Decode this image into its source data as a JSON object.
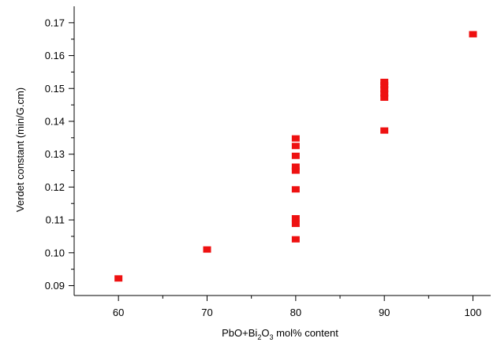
{
  "chart_data": {
    "type": "scatter",
    "xlabel_parts": [
      "PbO+Bi",
      "2",
      "O",
      "3",
      " mol% content"
    ],
    "ylabel": "Verdet constant (min/G.cm)",
    "xlim": [
      55,
      102
    ],
    "ylim": [
      0.087,
      0.175
    ],
    "x_ticks": [
      60,
      70,
      80,
      90,
      100
    ],
    "x_tick_labels": [
      "60",
      "70",
      "80",
      "90",
      "100"
    ],
    "y_ticks": [
      0.09,
      0.1,
      0.11,
      0.12,
      0.13,
      0.14,
      0.15,
      0.16,
      0.17
    ],
    "y_tick_labels": [
      "0.09",
      "0.10",
      "0.11",
      "0.12",
      "0.13",
      "0.14",
      "0.15",
      "0.16",
      "0.17"
    ],
    "grid": false,
    "marker_color": "#ee1111",
    "series": [
      {
        "points": [
          {
            "x": 60,
            "y": 0.0922
          },
          {
            "x": 70,
            "y": 0.101
          },
          {
            "x": 80,
            "y": 0.1041
          },
          {
            "x": 80,
            "y": 0.1088
          },
          {
            "x": 80,
            "y": 0.1105
          },
          {
            "x": 80,
            "y": 0.1193
          },
          {
            "x": 80,
            "y": 0.125
          },
          {
            "x": 80,
            "y": 0.1262
          },
          {
            "x": 80,
            "y": 0.1295
          },
          {
            "x": 80,
            "y": 0.1325
          },
          {
            "x": 80,
            "y": 0.1348
          },
          {
            "x": 90,
            "y": 0.1372
          },
          {
            "x": 90,
            "y": 0.1472
          },
          {
            "x": 90,
            "y": 0.1485
          },
          {
            "x": 90,
            "y": 0.1498
          },
          {
            "x": 90,
            "y": 0.151
          },
          {
            "x": 90,
            "y": 0.152
          },
          {
            "x": 100,
            "y": 0.1665
          }
        ]
      }
    ]
  }
}
